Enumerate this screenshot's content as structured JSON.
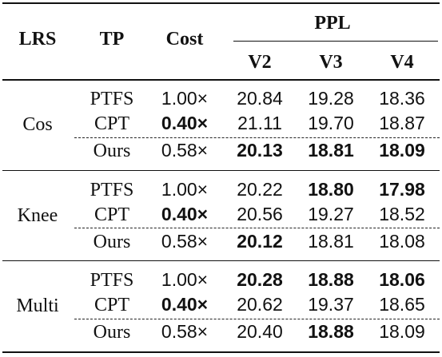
{
  "table": {
    "headers": {
      "lrs": "LRS",
      "tp": "TP",
      "cost": "Cost",
      "ppl": "PPL",
      "v2": "V2",
      "v3": "V3",
      "v4": "V4"
    },
    "groups": [
      {
        "lrs": "Cos",
        "rows": [
          {
            "tp": "PTFS",
            "cost": "1.00×",
            "v2": "20.84",
            "v3": "19.28",
            "v4": "18.36",
            "bold": []
          },
          {
            "tp": "CPT",
            "cost": "0.40×",
            "v2": "21.11",
            "v3": "19.70",
            "v4": "18.87",
            "bold": [
              "cost"
            ]
          },
          {
            "tp": "Ours",
            "cost": "0.58×",
            "v2": "20.13",
            "v3": "18.81",
            "v4": "18.09",
            "bold": [
              "v2",
              "v3",
              "v4"
            ]
          }
        ]
      },
      {
        "lrs": "Knee",
        "rows": [
          {
            "tp": "PTFS",
            "cost": "1.00×",
            "v2": "20.22",
            "v3": "18.80",
            "v4": "17.98",
            "bold": [
              "v3",
              "v4"
            ]
          },
          {
            "tp": "CPT",
            "cost": "0.40×",
            "v2": "20.56",
            "v3": "19.27",
            "v4": "18.52",
            "bold": [
              "cost"
            ]
          },
          {
            "tp": "Ours",
            "cost": "0.58×",
            "v2": "20.12",
            "v3": "18.81",
            "v4": "18.08",
            "bold": [
              "v2"
            ]
          }
        ]
      },
      {
        "lrs": "Multi",
        "rows": [
          {
            "tp": "PTFS",
            "cost": "1.00×",
            "v2": "20.28",
            "v3": "18.88",
            "v4": "18.06",
            "bold": [
              "v2",
              "v3",
              "v4"
            ]
          },
          {
            "tp": "CPT",
            "cost": "0.40×",
            "v2": "20.62",
            "v3": "19.37",
            "v4": "18.65",
            "bold": [
              "cost"
            ]
          },
          {
            "tp": "Ours",
            "cost": "0.58×",
            "v2": "20.40",
            "v3": "18.88",
            "v4": "18.09",
            "bold": [
              "v3"
            ]
          }
        ]
      }
    ]
  }
}
